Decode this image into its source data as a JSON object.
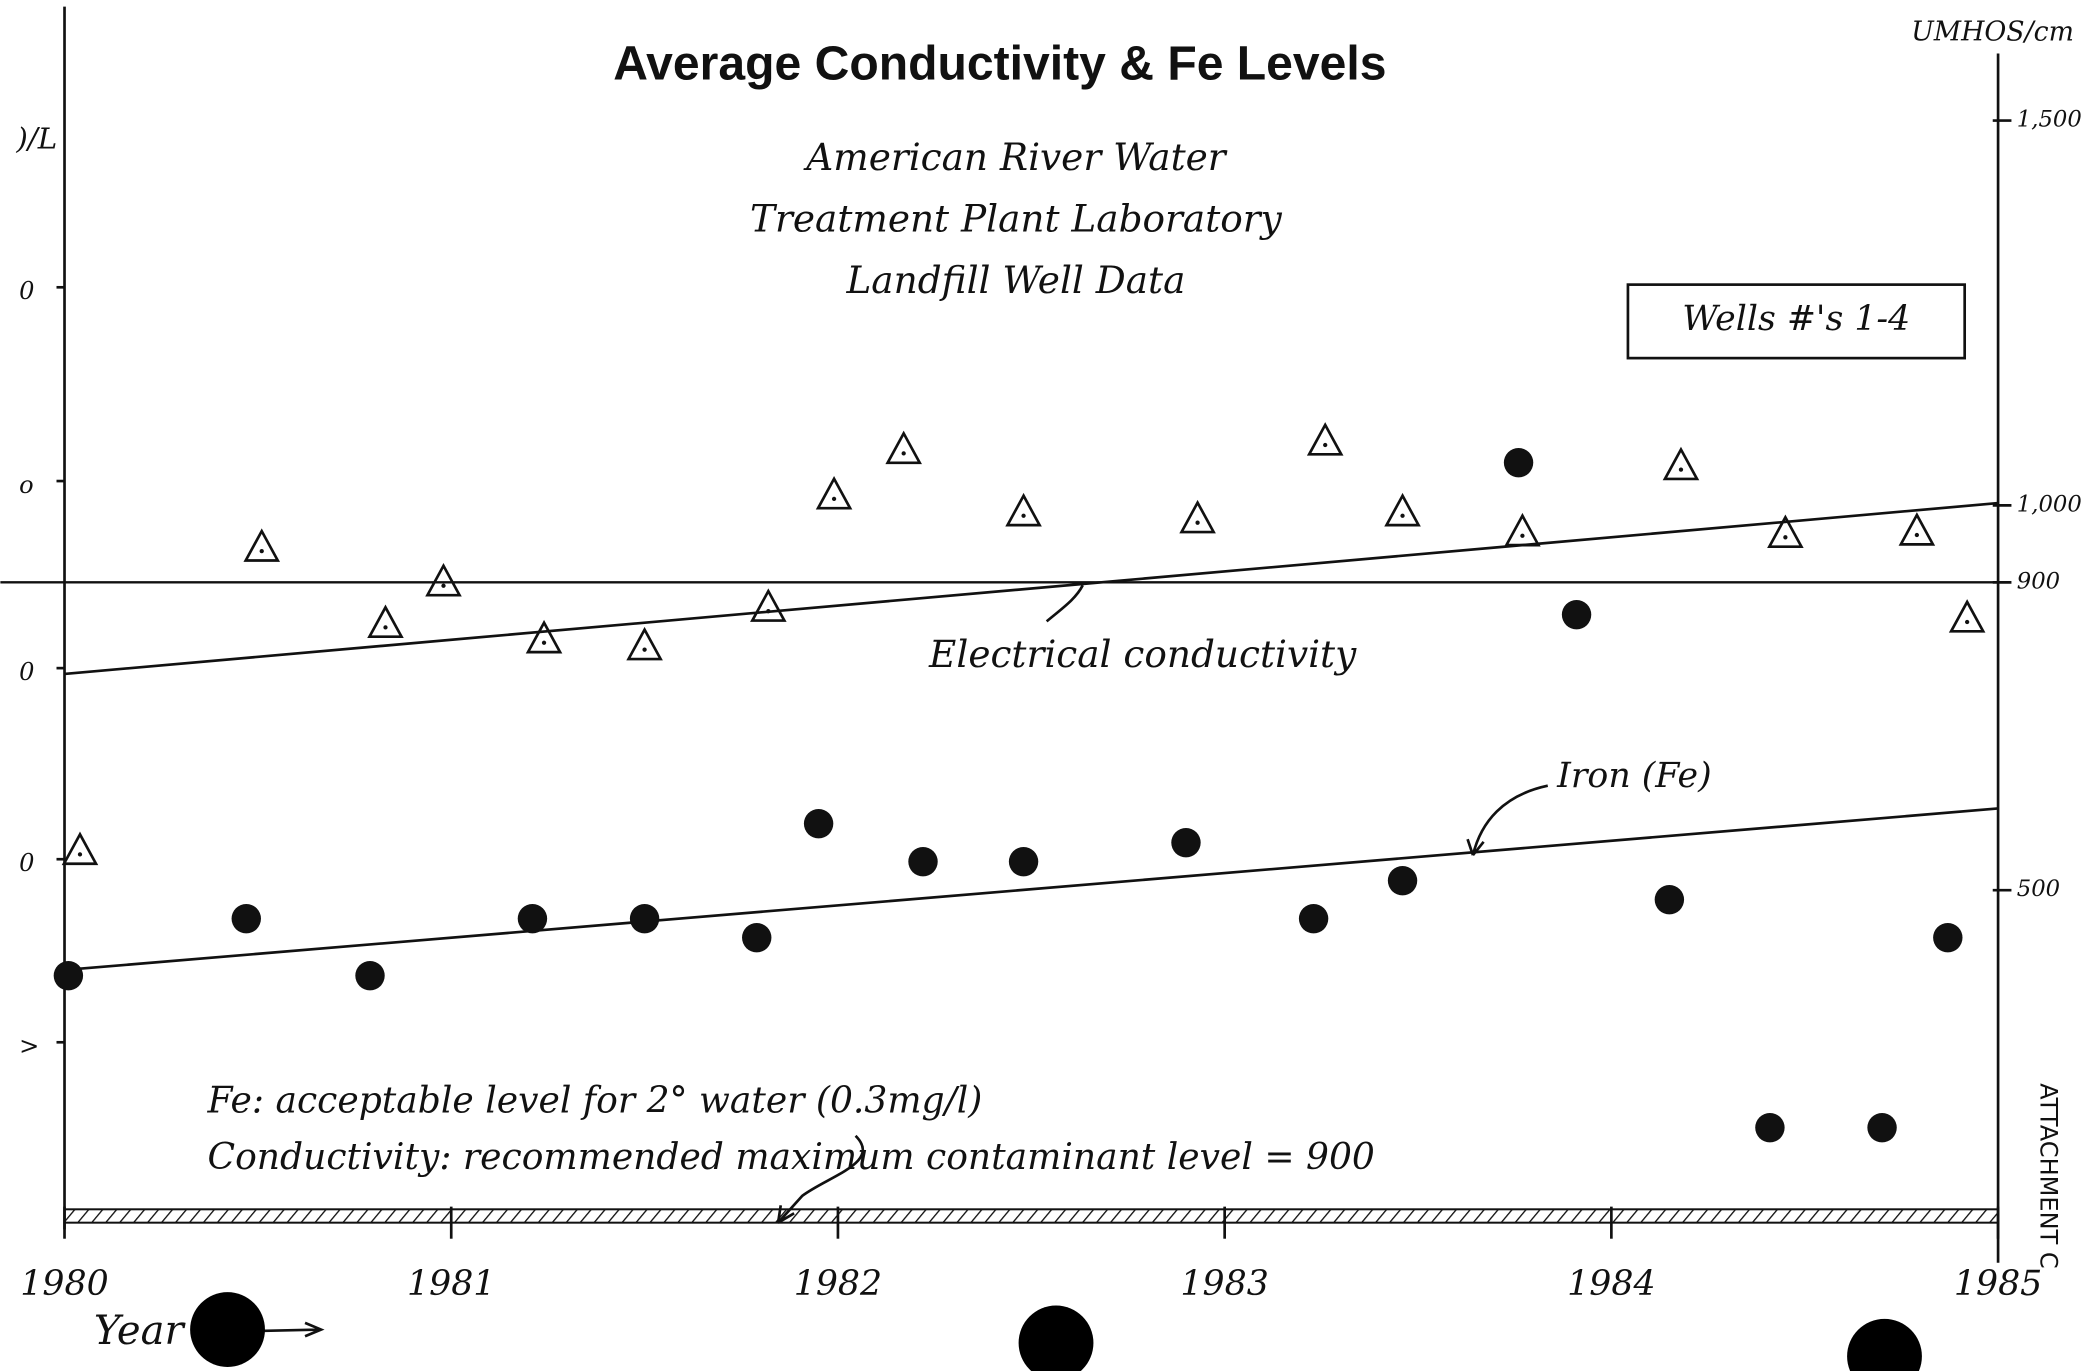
{
  "chart_data": {
    "type": "scatter",
    "title": "Average Conductivity & Fe Levels",
    "subtitle": [
      "American River Water",
      "Treatment Plant Laboratory",
      "Landfill Well Data"
    ],
    "legend_box": "Wells #'s 1-4",
    "x_label": "Year",
    "y_label": ")/L",
    "y_tick_fragments": [
      "0",
      "o",
      "0",
      "0",
      ">"
    ],
    "y2_label": "UMHOS/cm",
    "xlim": [
      1980,
      1985
    ],
    "xticks": [
      1980,
      1981,
      1982,
      1983,
      1984,
      1985
    ],
    "ylim": [
      0.3,
      0.94
    ],
    "y2lim": [
      68,
      1648
    ],
    "y2ticks": [
      {
        "value": 1500,
        "label": "1,500"
      },
      {
        "value": 1000,
        "label": "1,000"
      },
      900,
      500
    ],
    "series": [
      {
        "name": "Iron (Fe)",
        "marker": "circle",
        "color": "#111111",
        "x": [
          1980.01,
          1980.47,
          1980.79,
          1981.21,
          1981.5,
          1981.79,
          1981.95,
          1982.22,
          1982.48,
          1982.9,
          1983.23,
          1983.46,
          1983.76,
          1983.91,
          1984.15,
          1984.41,
          1984.7,
          1984.87
        ],
        "values": [
          0.43,
          0.46,
          0.43,
          0.46,
          0.46,
          0.45,
          0.51,
          0.49,
          0.49,
          0.5,
          0.46,
          0.48,
          0.7,
          0.62,
          0.47,
          0.35,
          0.35,
          0.45
        ]
      },
      {
        "name": "Electrical conductivity",
        "marker": "triangle",
        "color": "#111111",
        "axis": "y2",
        "x": [
          1980.04,
          1980.51,
          1980.83,
          1980.98,
          1981.24,
          1981.5,
          1981.82,
          1981.99,
          1982.17,
          1982.48,
          1982.93,
          1983.26,
          1983.46,
          1983.77,
          1984.18,
          1984.45,
          1984.79,
          1984.92
        ],
        "values": [
          550,
          944,
          845,
          899,
          825,
          816,
          866,
          1012,
          1071,
          990,
          981,
          1082,
          990,
          964,
          1050,
          962,
          965,
          852
        ]
      }
    ],
    "trend_lines": [
      {
        "series": 0,
        "x": [
          1980,
          1985
        ],
        "values": [
          0.433,
          0.518
        ]
      },
      {
        "series": 1,
        "axis": "y2",
        "x": [
          1980,
          1985
        ],
        "values": [
          781,
          1003
        ]
      }
    ],
    "reference_lines": [
      {
        "axis": "y2",
        "value": 900,
        "style": "solid"
      },
      {
        "axis": "y",
        "value": 0.3,
        "style": "hatched"
      }
    ],
    "notes": [
      "Fe: acceptable level for 2° water (0.3mg/l)",
      "Conductivity: recommended maximum contaminant level = 900"
    ],
    "attachment": "ATTACHMENT C"
  }
}
